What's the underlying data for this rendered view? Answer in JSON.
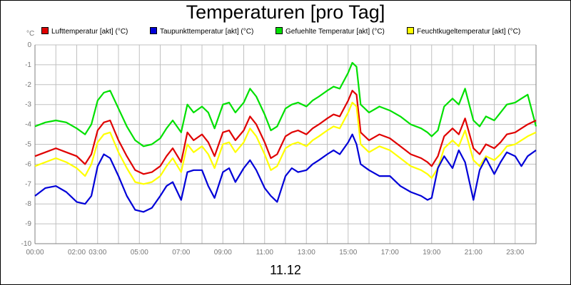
{
  "title": "Temperaturen [pro Tag]",
  "date_label": "11.12",
  "colors": {
    "lufttemperatur": "#e00000",
    "taupunkttemperatur": "#0000d8",
    "gefuehlte": "#00e000",
    "feuchtkugel": "#ffff00",
    "grid": "#c0c0c0",
    "axis": "#808080"
  },
  "legend": [
    {
      "label": "Lufttemperatur [akt] (°C)",
      "color": "#e00000"
    },
    {
      "label": "Taupunkttemperatur [akt] (°C)",
      "color": "#0000d8"
    },
    {
      "label": "Gefuehlte Temperatur [akt] (°C)",
      "color": "#00e000"
    },
    {
      "label": "Feuchtkugeltemperatur [akt] (°C)",
      "color": "#ffff00"
    }
  ],
  "chart_data": {
    "type": "line",
    "title": "Temperaturen [pro Tag]",
    "xlabel": "11.12",
    "ylabel": "°C",
    "xlim": [
      0,
      24
    ],
    "ylim": [
      -10,
      0
    ],
    "grid": true,
    "legend_position": "top",
    "y_ticks": [
      "0",
      "-1",
      "-2",
      "-3",
      "-4",
      "-5",
      "-6",
      "-7",
      "-8",
      "-9",
      "-10"
    ],
    "y_tick_values": [
      0,
      -1,
      -2,
      -3,
      -4,
      -5,
      -6,
      -7,
      -8,
      -9,
      -10
    ],
    "x_ticks": [
      "00:00",
      "02:00",
      "03:00",
      "05:00",
      "07:00",
      "09:00",
      "11:00",
      "13:00",
      "15:00",
      "17:00",
      "19:00",
      "21:00",
      "23:00"
    ],
    "x_tick_values": [
      0,
      2,
      3,
      5,
      7,
      9,
      11,
      13,
      15,
      17,
      19,
      21,
      23
    ],
    "series": [
      {
        "name": "Gefuehlte Temperatur [akt] (°C)",
        "color": "#00e000",
        "x": [
          0,
          0.5,
          1,
          1.5,
          2,
          2.4,
          2.7,
          3.0,
          3.3,
          3.6,
          4.0,
          4.4,
          4.8,
          5.2,
          5.6,
          6.0,
          6.3,
          6.6,
          7.0,
          7.3,
          7.6,
          8.0,
          8.3,
          8.6,
          9.0,
          9.3,
          9.6,
          10.0,
          10.3,
          10.6,
          11.0,
          11.3,
          11.6,
          12.0,
          12.3,
          12.6,
          13.0,
          13.3,
          13.6,
          14.0,
          14.3,
          14.6,
          15.0,
          15.2,
          15.4,
          15.6,
          16.0,
          16.5,
          17.0,
          17.5,
          18.0,
          18.5,
          18.8,
          19.0,
          19.3,
          19.6,
          20.0,
          20.3,
          20.6,
          21.0,
          21.3,
          21.6,
          22.0,
          22.3,
          22.6,
          23.0,
          23.3,
          23.6,
          24.0
        ],
        "y": [
          -4.1,
          -3.9,
          -3.8,
          -3.9,
          -4.2,
          -4.5,
          -4.0,
          -2.8,
          -2.4,
          -2.3,
          -3.2,
          -4.1,
          -4.8,
          -5.1,
          -5.0,
          -4.7,
          -4.2,
          -3.8,
          -4.4,
          -3.0,
          -3.4,
          -3.1,
          -3.4,
          -4.2,
          -3.0,
          -2.9,
          -3.4,
          -2.9,
          -2.2,
          -2.6,
          -3.5,
          -4.3,
          -4.1,
          -3.2,
          -3.0,
          -2.9,
          -3.1,
          -2.8,
          -2.6,
          -2.3,
          -2.1,
          -2.2,
          -1.4,
          -0.9,
          -1.1,
          -3.0,
          -3.4,
          -3.1,
          -3.3,
          -3.6,
          -4.0,
          -4.2,
          -4.4,
          -4.6,
          -4.3,
          -3.1,
          -2.7,
          -3.0,
          -2.2,
          -3.8,
          -4.1,
          -3.6,
          -3.8,
          -3.4,
          -3.0,
          -2.9,
          -2.7,
          -2.5,
          -4.1
        ]
      },
      {
        "name": "Lufttemperatur [akt] (°C)",
        "color": "#e00000",
        "x": [
          0,
          0.5,
          1,
          1.5,
          2,
          2.4,
          2.7,
          3.0,
          3.3,
          3.6,
          4.0,
          4.4,
          4.8,
          5.2,
          5.6,
          6.0,
          6.3,
          6.6,
          7.0,
          7.3,
          7.6,
          8.0,
          8.3,
          8.6,
          9.0,
          9.3,
          9.6,
          10.0,
          10.3,
          10.6,
          11.0,
          11.3,
          11.6,
          12.0,
          12.3,
          12.6,
          13.0,
          13.3,
          13.6,
          14.0,
          14.3,
          14.6,
          15.0,
          15.2,
          15.4,
          15.6,
          16.0,
          16.5,
          17.0,
          17.5,
          18.0,
          18.5,
          18.8,
          19.0,
          19.3,
          19.6,
          20.0,
          20.3,
          20.6,
          21.0,
          21.3,
          21.6,
          22.0,
          22.3,
          22.6,
          23.0,
          23.3,
          23.6,
          24.0
        ],
        "y": [
          -5.6,
          -5.4,
          -5.2,
          -5.4,
          -5.6,
          -6.0,
          -5.5,
          -4.3,
          -3.9,
          -3.8,
          -4.8,
          -5.6,
          -6.3,
          -6.5,
          -6.4,
          -6.1,
          -5.6,
          -5.2,
          -5.9,
          -4.4,
          -4.8,
          -4.5,
          -4.9,
          -5.6,
          -4.4,
          -4.3,
          -4.8,
          -4.3,
          -3.6,
          -4.0,
          -4.9,
          -5.7,
          -5.5,
          -4.6,
          -4.4,
          -4.3,
          -4.5,
          -4.2,
          -4.0,
          -3.7,
          -3.5,
          -3.6,
          -2.8,
          -2.3,
          -2.5,
          -4.4,
          -4.8,
          -4.5,
          -4.7,
          -5.1,
          -5.5,
          -5.7,
          -5.9,
          -6.1,
          -5.6,
          -4.6,
          -4.2,
          -4.5,
          -3.7,
          -5.2,
          -5.5,
          -5.0,
          -5.2,
          -4.9,
          -4.5,
          -4.4,
          -4.2,
          -4.0,
          -3.8
        ]
      },
      {
        "name": "Feuchtkugeltemperatur [akt] (°C)",
        "color": "#ffff00",
        "x": [
          0,
          0.5,
          1,
          1.5,
          2,
          2.4,
          2.7,
          3.0,
          3.3,
          3.6,
          4.0,
          4.4,
          4.8,
          5.2,
          5.6,
          6.0,
          6.3,
          6.6,
          7.0,
          7.3,
          7.6,
          8.0,
          8.3,
          8.6,
          9.0,
          9.3,
          9.6,
          10.0,
          10.3,
          10.6,
          11.0,
          11.3,
          11.6,
          12.0,
          12.3,
          12.6,
          13.0,
          13.3,
          13.6,
          14.0,
          14.3,
          14.6,
          15.0,
          15.2,
          15.4,
          15.6,
          16.0,
          16.5,
          17.0,
          17.5,
          18.0,
          18.5,
          18.8,
          19.0,
          19.3,
          19.6,
          20.0,
          20.3,
          20.6,
          21.0,
          21.3,
          21.6,
          22.0,
          22.3,
          22.6,
          23.0,
          23.3,
          23.6,
          24.0
        ],
        "y": [
          -6.1,
          -5.9,
          -5.7,
          -5.9,
          -6.2,
          -6.6,
          -6.0,
          -4.9,
          -4.5,
          -4.4,
          -5.4,
          -6.2,
          -6.9,
          -7.0,
          -6.9,
          -6.6,
          -6.1,
          -5.7,
          -6.4,
          -5.0,
          -5.4,
          -5.1,
          -5.5,
          -6.2,
          -5.0,
          -4.9,
          -5.4,
          -4.9,
          -4.2,
          -4.6,
          -5.5,
          -6.3,
          -6.1,
          -5.2,
          -5.0,
          -4.9,
          -5.1,
          -4.8,
          -4.6,
          -4.3,
          -4.1,
          -4.2,
          -3.4,
          -2.9,
          -3.1,
          -5.0,
          -5.4,
          -5.1,
          -5.3,
          -5.7,
          -6.1,
          -6.3,
          -6.5,
          -6.7,
          -6.2,
          -5.2,
          -4.8,
          -5.1,
          -4.3,
          -5.8,
          -6.1,
          -5.6,
          -5.8,
          -5.5,
          -5.1,
          -5.0,
          -4.8,
          -4.6,
          -4.4
        ]
      },
      {
        "name": "Taupunkttemperatur [akt] (°C)",
        "color": "#0000d8",
        "x": [
          0,
          0.5,
          1,
          1.5,
          2,
          2.4,
          2.7,
          3.0,
          3.3,
          3.6,
          4.0,
          4.4,
          4.8,
          5.2,
          5.6,
          6.0,
          6.3,
          6.6,
          7.0,
          7.3,
          7.6,
          8.0,
          8.3,
          8.6,
          9.0,
          9.3,
          9.6,
          10.0,
          10.3,
          10.6,
          11.0,
          11.3,
          11.6,
          12.0,
          12.3,
          12.6,
          13.0,
          13.3,
          13.6,
          14.0,
          14.3,
          14.6,
          15.0,
          15.2,
          15.4,
          15.6,
          16.0,
          16.5,
          17.0,
          17.5,
          18.0,
          18.5,
          18.8,
          19.0,
          19.3,
          19.6,
          20.0,
          20.3,
          20.6,
          21.0,
          21.3,
          21.6,
          22.0,
          22.3,
          22.6,
          23.0,
          23.3,
          23.6,
          24.0
        ],
        "y": [
          -7.6,
          -7.2,
          -7.1,
          -7.4,
          -7.9,
          -8.0,
          -7.6,
          -6.1,
          -5.5,
          -5.7,
          -6.6,
          -7.6,
          -8.3,
          -8.4,
          -8.2,
          -7.6,
          -7.1,
          -6.9,
          -7.8,
          -6.4,
          -6.3,
          -6.3,
          -7.1,
          -7.7,
          -6.4,
          -6.2,
          -6.9,
          -6.2,
          -5.8,
          -6.3,
          -7.2,
          -7.6,
          -7.9,
          -6.6,
          -6.2,
          -6.4,
          -6.3,
          -6.0,
          -5.8,
          -5.5,
          -5.3,
          -5.5,
          -4.9,
          -4.5,
          -5.0,
          -6.0,
          -6.3,
          -6.6,
          -6.6,
          -7.1,
          -7.4,
          -7.6,
          -7.8,
          -7.7,
          -6.2,
          -5.6,
          -6.2,
          -5.3,
          -5.9,
          -7.8,
          -6.3,
          -5.7,
          -6.5,
          -5.9,
          -5.4,
          -5.6,
          -6.1,
          -5.6,
          -5.3
        ]
      }
    ]
  }
}
